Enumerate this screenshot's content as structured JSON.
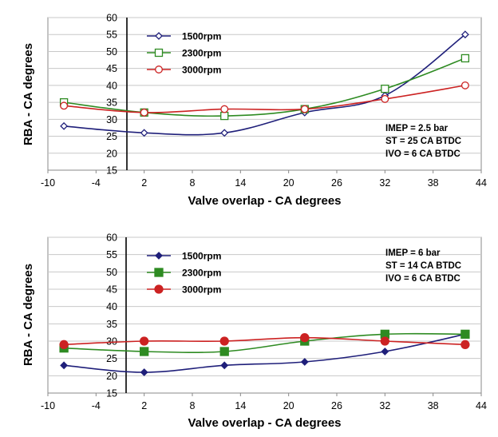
{
  "chart_data": [
    {
      "type": "line",
      "title": "",
      "xlabel": "Valve overlap  -  CA degrees",
      "ylabel": "RBA  -  CA degrees",
      "xlim": [
        -10,
        44
      ],
      "ylim": [
        15,
        60
      ],
      "xticks": [
        "-10",
        "-4",
        "2",
        "8",
        "14",
        "20",
        "26",
        "32",
        "38",
        "44"
      ],
      "yticks": [
        "15",
        "20",
        "25",
        "30",
        "35",
        "40",
        "45",
        "50",
        "55",
        "60"
      ],
      "grid": "horizontal",
      "marker_fill": "open",
      "legend_position": "top-left",
      "x": [
        -8,
        2,
        12,
        22,
        32,
        42
      ],
      "series": [
        {
          "name": "1500rpm",
          "color": "#1f1f7a",
          "marker": "diamond",
          "values": [
            28,
            26,
            26,
            32,
            37,
            55
          ]
        },
        {
          "name": "2300rpm",
          "color": "#2e8b22",
          "marker": "square",
          "values": [
            35,
            32,
            31,
            33,
            39,
            48
          ]
        },
        {
          "name": "3000rpm",
          "color": "#cc2222",
          "marker": "circle",
          "values": [
            34,
            32,
            33,
            33,
            36,
            40
          ]
        }
      ],
      "annotations": [
        "IMEP = 2.5 bar",
        "ST = 25 CA BTDC",
        "IVO = 6 CA BTDC"
      ]
    },
    {
      "type": "line",
      "title": "",
      "xlabel": "Valve overlap  -  CA degrees",
      "ylabel": "RBA  -  CA degrees",
      "xlim": [
        -10,
        44
      ],
      "ylim": [
        15,
        60
      ],
      "xticks": [
        "-10",
        "-4",
        "2",
        "8",
        "14",
        "20",
        "26",
        "32",
        "38",
        "44"
      ],
      "yticks": [
        "15",
        "20",
        "25",
        "30",
        "35",
        "40",
        "45",
        "50",
        "55",
        "60"
      ],
      "grid": "horizontal",
      "marker_fill": "solid",
      "legend_position": "top-left",
      "x": [
        -8,
        2,
        12,
        22,
        32,
        42
      ],
      "series": [
        {
          "name": "1500rpm",
          "color": "#1f1f7a",
          "marker": "diamond",
          "values": [
            23,
            21,
            23,
            24,
            27,
            32
          ]
        },
        {
          "name": "2300rpm",
          "color": "#2e8b22",
          "marker": "square",
          "values": [
            28,
            27,
            27,
            30,
            32,
            32
          ]
        },
        {
          "name": "3000rpm",
          "color": "#cc2222",
          "marker": "circle",
          "values": [
            29,
            30,
            30,
            31,
            30,
            29
          ]
        }
      ],
      "annotations": [
        "IMEP = 6 bar",
        "ST = 14 CA BTDC",
        "IVO = 6 CA BTDC"
      ]
    }
  ]
}
